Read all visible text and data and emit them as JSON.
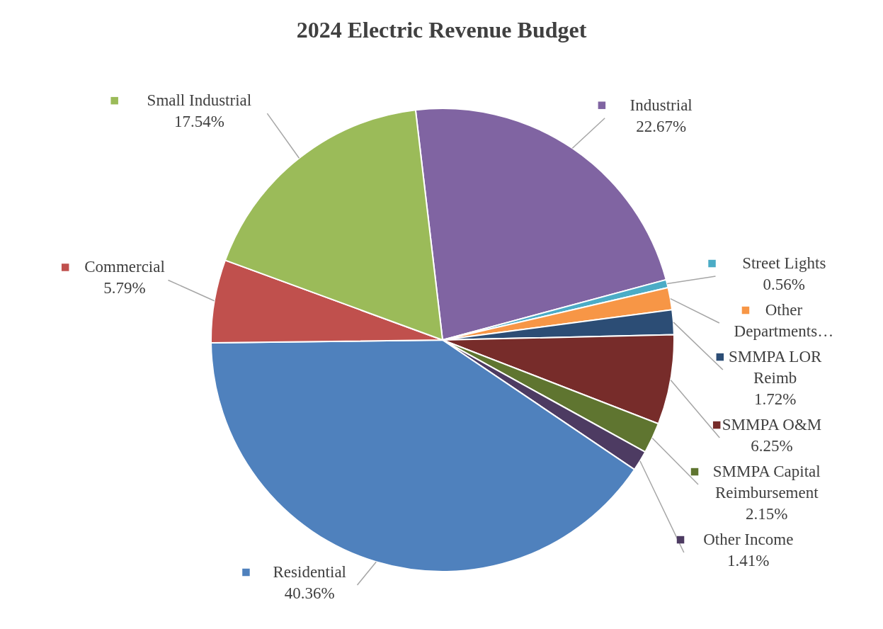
{
  "chart_data": {
    "type": "pie",
    "title": "2024 Electric Revenue Budget",
    "categories": [
      "Industrial",
      "Street Lights",
      "Other Departments…",
      "SMMPA LOR Reimb",
      "SMMPA O&M",
      "SMMPA Capital Reimbursement",
      "Other Income",
      "Residential",
      "Commercial",
      "Small Industrial"
    ],
    "values": [
      22.67,
      0.56,
      1.55,
      1.72,
      6.25,
      2.15,
      1.41,
      40.36,
      5.79,
      17.54
    ],
    "legend": "right",
    "colors": [
      "#8064a2",
      "#4bacc6",
      "#f79646",
      "#2c4d75",
      "#772c2a",
      "#5f7530",
      "#4d3b62",
      "#4f81bd",
      "#c0504d",
      "#9bbb59"
    ],
    "value_labels": [
      "22.67%",
      "0.56%",
      null,
      "1.72%",
      "6.25%",
      "2.15%",
      "1.41%",
      "40.36%",
      "5.79%",
      "17.54%"
    ]
  }
}
